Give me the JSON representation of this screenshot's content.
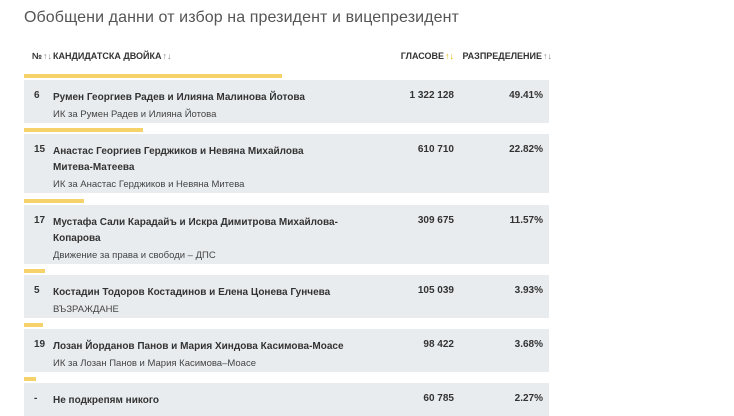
{
  "title": "Обобщени данни от избор на президент и вицепрезидент",
  "header": {
    "num": "№",
    "candidate": "КАНДИДАТСКА ДВОЙКА",
    "votes": "ГЛАСОВЕ",
    "distribution": "РАЗПРЕДЕЛЕНИЕ",
    "sort_glyph": "↑↓"
  },
  "colors": {
    "bar": "#f6d36a",
    "row_bg": "#e9ecef",
    "active_sort": "#e2b400"
  },
  "rows": [
    {
      "num": "6",
      "name": "Румен Георгиев Радев и Илияна Малинова Йотова",
      "party": "ИК за Румен Радев и Илияна Йотова",
      "votes": "1 322 128",
      "percent": "49.41%"
    },
    {
      "num": "15",
      "name": "Анастас Георгиев Герджиков и Невяна Михайлова Митева-Матеева",
      "party": "ИК за Анастас Герджиков и Невяна Митева",
      "votes": "610 710",
      "percent": "22.82%"
    },
    {
      "num": "17",
      "name": "Мустафа Сали Карадайъ и Искра Димитрова Михайлова-Копарова",
      "party": "Движение за права и свободи – ДПС",
      "votes": "309 675",
      "percent": "11.57%"
    },
    {
      "num": "5",
      "name": "Костадин Тодоров Костадинов и Елена Цонева Гунчева",
      "party": "ВЪЗРАЖДАНЕ",
      "votes": "105 039",
      "percent": "3.93%"
    },
    {
      "num": "19",
      "name": "Лозан Йорданов Панов и Мария Хиндова Касимова-Моасе",
      "party": "ИК за Лозан Панов и Мария Касимова–Моасе",
      "votes": "98 422",
      "percent": "3.68%"
    },
    {
      "num": "-",
      "name": "Не подкрепям никого",
      "party": "",
      "votes": "60 785",
      "percent": "2.27%"
    }
  ]
}
